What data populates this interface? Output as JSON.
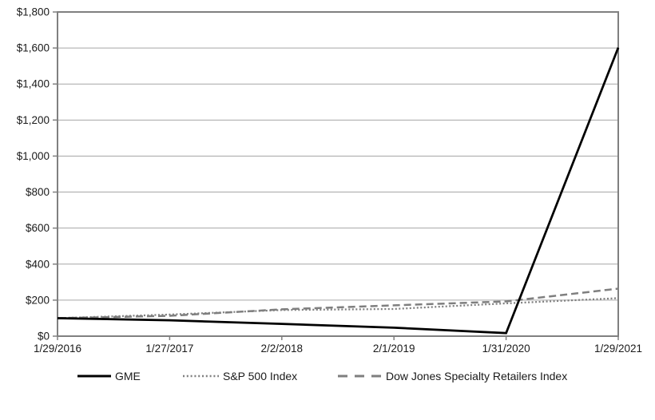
{
  "chart_data": {
    "type": "line",
    "title": "",
    "xlabel": "",
    "ylabel": "",
    "categories": [
      "1/29/2016",
      "1/27/2017",
      "2/2/2018",
      "2/1/2019",
      "1/31/2020",
      "1/29/2021"
    ],
    "series": [
      {
        "name": "GME",
        "values": [
          100,
          88,
          68,
          47,
          17,
          1602
        ],
        "color": "#000000",
        "style": "solid"
      },
      {
        "name": "S&P 500 Index",
        "values": [
          100,
          120,
          145,
          151,
          182,
          211
        ],
        "color": "#7f7f7f",
        "style": "dotted"
      },
      {
        "name": "Dow Jones Specialty Retailers Index",
        "values": [
          100,
          113,
          149,
          171,
          193,
          264
        ],
        "color": "#7f7f7f",
        "style": "dashed"
      }
    ],
    "ylim": [
      0,
      1800
    ],
    "ytick_step": 200,
    "ytick_labels": [
      "$0",
      "$200",
      "$400",
      "$600",
      "$800",
      "$1,000",
      "$1,200",
      "$1,400",
      "$1,600",
      "$1,800"
    ],
    "grid": "horizontal",
    "legend_position": "bottom"
  },
  "colors": {
    "plot_border": "#808080",
    "gridline": "#a6a6a6",
    "axis_text": "#1a1a1a",
    "gme_line": "#000000",
    "index_line": "#7f7f7f",
    "background": "#ffffff"
  }
}
